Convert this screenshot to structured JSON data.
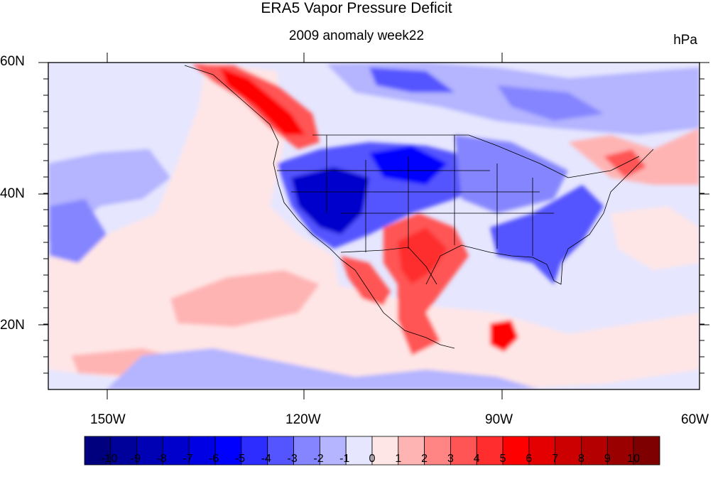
{
  "title": "ERA5 Vapor Pressure Deficit",
  "subtitle": "2009 anomaly week22",
  "units": "hPa",
  "lat_labels": [
    "60N",
    "40N",
    "20N"
  ],
  "lon_labels": [
    "150W",
    "120W",
    "90W",
    "60W"
  ],
  "colorbar": {
    "labels": [
      "-10",
      "-9",
      "-8",
      "-7",
      "-6",
      "-5",
      "-4",
      "-3",
      "-2",
      "-1",
      "0",
      "1",
      "2",
      "3",
      "4",
      "5",
      "6",
      "7",
      "8",
      "9",
      "10"
    ],
    "colors": [
      "#00007e",
      "#00009a",
      "#0000b4",
      "#0000cc",
      "#0000e4",
      "#0000ff",
      "#2d2dff",
      "#5555ff",
      "#8585ff",
      "#b4b4ff",
      "#e6e6ff",
      "#ffe6e6",
      "#ffb4b4",
      "#ff8585",
      "#ff5555",
      "#ff2d2d",
      "#ff0000",
      "#e40000",
      "#cc0000",
      "#b40000",
      "#9a0000",
      "#7e0000"
    ]
  },
  "map": {
    "background_color": "#e6e6ff",
    "lat_range": [
      10,
      60
    ],
    "lon_range": [
      -159,
      -60
    ]
  }
}
